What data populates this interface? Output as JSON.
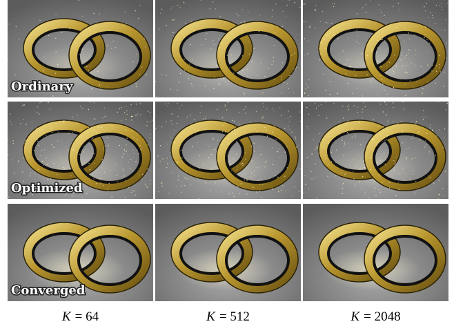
{
  "rows": [
    {
      "label": "Ordinary"
    },
    {
      "label": "Optimized"
    },
    {
      "label": "Converged"
    }
  ],
  "columns": [
    {
      "symbol": "K",
      "rhs": "= 64"
    },
    {
      "symbol": "K",
      "rhs": "= 512"
    },
    {
      "symbol": "K",
      "rhs": "= 2048"
    }
  ]
}
